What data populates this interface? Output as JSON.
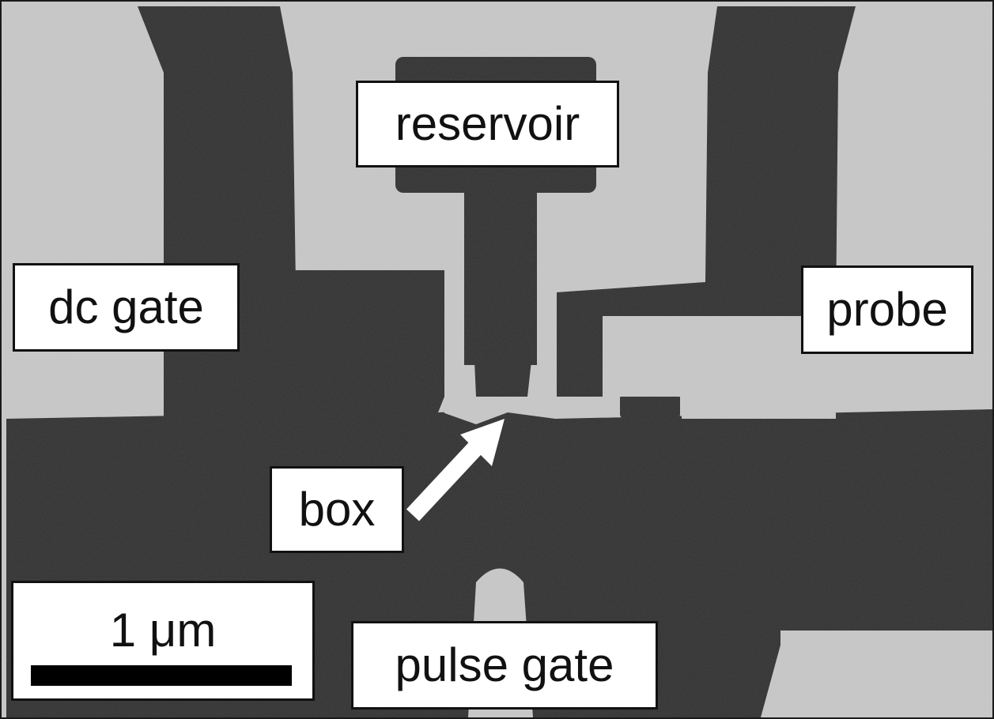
{
  "labels": {
    "reservoir": "reservoir",
    "dc_gate": "dc gate",
    "probe": "probe",
    "box": "box",
    "pulse_gate": "pulse gate"
  },
  "scale_bar": {
    "text": "1 μm"
  },
  "colors": {
    "substrate": "#c8c8c8",
    "metal": "#2e2e2e",
    "label_background": "#ffffff",
    "border": "#111111"
  }
}
